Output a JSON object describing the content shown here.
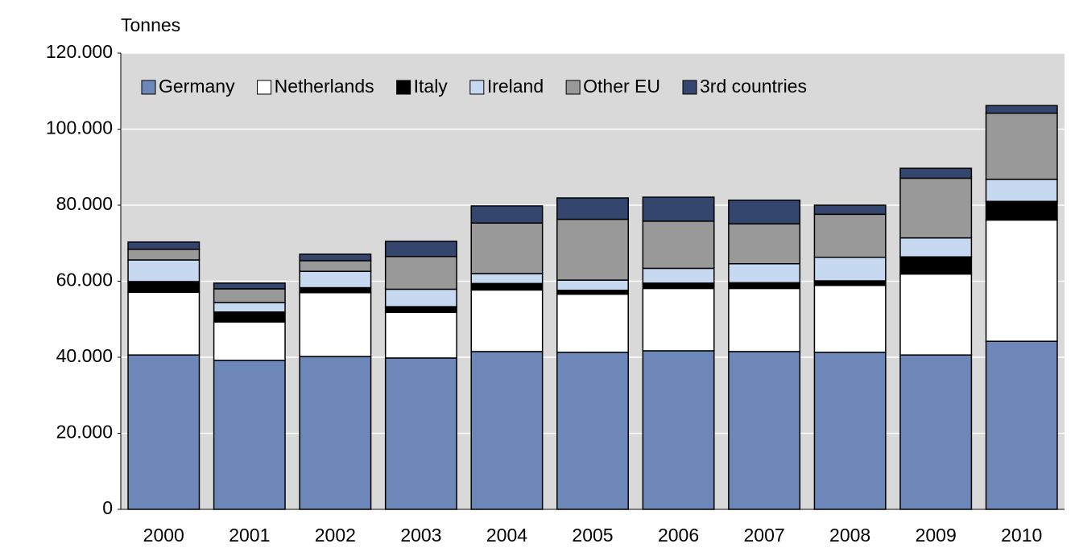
{
  "chart_data": {
    "type": "stacked_bar",
    "y_label": "Tonnes",
    "categories": [
      "2000",
      "2001",
      "2002",
      "2003",
      "2004",
      "2005",
      "2006",
      "2007",
      "2008",
      "2009",
      "2010"
    ],
    "series": [
      {
        "name": "Germany",
        "color": "#6d87b8",
        "values": [
          40600,
          39200,
          40200,
          39800,
          41500,
          41300,
          41700,
          41500,
          41300,
          40600,
          44200
        ]
      },
      {
        "name": "Netherlands",
        "color": "#ffffff",
        "values": [
          16500,
          10100,
          16800,
          12000,
          16200,
          15300,
          16400,
          16600,
          17600,
          21300,
          31900
        ]
      },
      {
        "name": "Italy",
        "color": "#000000",
        "values": [
          2800,
          2600,
          1300,
          1500,
          1700,
          1000,
          1400,
          1500,
          1200,
          4500,
          4900
        ]
      },
      {
        "name": "Ireland",
        "color": "#c6d9f1",
        "values": [
          5700,
          2500,
          4300,
          4600,
          2600,
          2700,
          3900,
          5000,
          6200,
          5000,
          5800
        ]
      },
      {
        "name": "Other EU",
        "color": "#999999",
        "values": [
          2800,
          3600,
          2800,
          8600,
          13300,
          16000,
          12400,
          10500,
          11300,
          15700,
          17400
        ]
      },
      {
        "name": "3rd countries",
        "color": "#35466e",
        "values": [
          1900,
          1500,
          1700,
          4000,
          4500,
          5600,
          6300,
          6200,
          2400,
          2600,
          2000
        ]
      }
    ],
    "ylim": [
      0,
      120000
    ],
    "yticks": [
      0,
      {
        "value": 20000,
        "label": "20.000"
      },
      {
        "value": 40000,
        "label": "40.000"
      },
      {
        "value": 60000,
        "label": "60.000"
      },
      {
        "value": 80000,
        "label": "80.000"
      },
      {
        "value": 100000,
        "label": "100.000"
      },
      {
        "value": 120000,
        "label": "120.000"
      }
    ],
    "grid": true,
    "legend": "top-left"
  }
}
